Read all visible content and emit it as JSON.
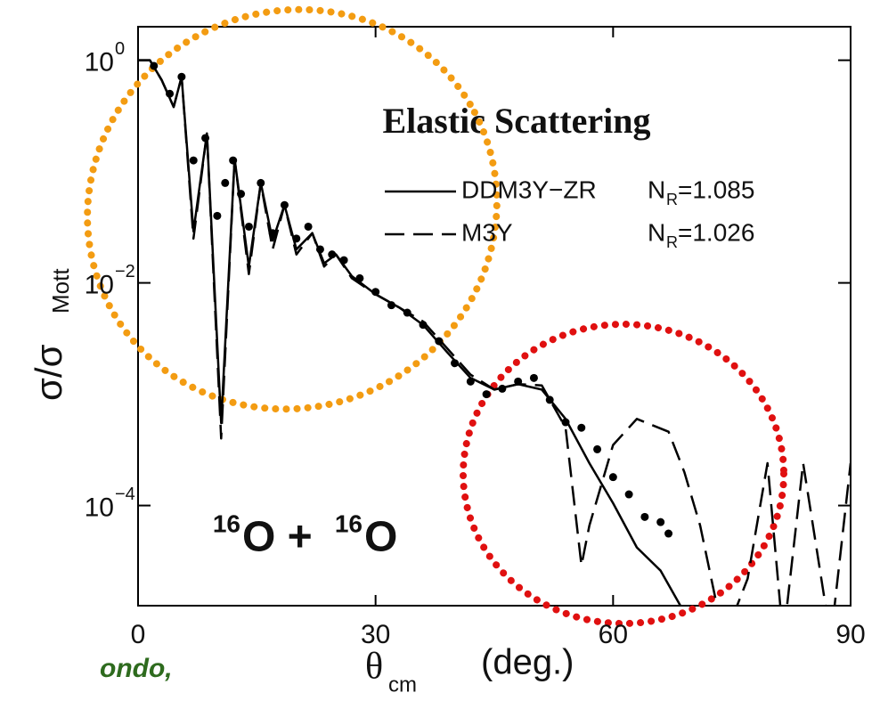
{
  "chart_data": {
    "type": "line",
    "title": "Elastic Scattering",
    "x_label": {
      "main": "θ",
      "sub": "cm",
      "unit": "(deg.)"
    },
    "y_label": {
      "main": "σ/σ",
      "sub": "Mott"
    },
    "annotation": [
      "16",
      "O +",
      "16",
      "O"
    ],
    "footnote": "ondo,",
    "yscale": "log",
    "xlim": [
      0,
      90
    ],
    "xticks": [
      0,
      30,
      60,
      90
    ],
    "ylim": [
      1.26e-05,
      2
    ],
    "yticks": [
      {
        "value": 1,
        "label": "10",
        "superscript": "0"
      },
      {
        "value": 0.01,
        "label": "10",
        "superscript": "−2"
      },
      {
        "value": 0.0001,
        "label": "10",
        "superscript": "−4"
      }
    ],
    "series": [
      {
        "name": "DDM3Y−ZR",
        "norm": {
          "symbol": "N",
          "subscript": "R",
          "text": "=1.085"
        },
        "style": "solid",
        "color": "#000000",
        "x": [
          0,
          1.5,
          3,
          4.5,
          5.5,
          7,
          8.7,
          10.5,
          12.2,
          14,
          15.5,
          17,
          18.5,
          20,
          22,
          23.5,
          25,
          27,
          30,
          33,
          36,
          39,
          42,
          45,
          48,
          51,
          54,
          57,
          60,
          63,
          66,
          68.5
        ],
        "values": [
          1,
          1,
          0.66,
          0.38,
          0.71,
          0.029,
          0.22,
          0.00055,
          0.13,
          0.014,
          0.079,
          0.024,
          0.05,
          0.02,
          0.028,
          0.015,
          0.018,
          0.0115,
          0.0079,
          0.006,
          0.0042,
          0.0024,
          0.0014,
          0.0011,
          0.00123,
          0.0011,
          0.0006,
          0.00024,
          0.000105,
          4.2e-05,
          2.6e-05,
          1.26e-05
        ]
      },
      {
        "name": "M3Y",
        "norm": {
          "symbol": "N",
          "subscript": "R",
          "text": "=1.026"
        },
        "style": "dashed",
        "color": "#000000",
        "x": [
          0,
          1.5,
          3,
          4.5,
          5.5,
          7,
          8.7,
          10.5,
          12.2,
          14,
          15.5,
          17,
          18.5,
          20,
          22,
          23.5,
          25,
          27,
          30,
          33,
          36,
          39,
          42,
          45,
          48,
          51,
          54,
          56,
          57,
          60,
          63,
          67,
          69,
          71,
          74,
          77,
          79.5,
          81.5,
          84,
          87.5,
          90
        ],
        "values": [
          1,
          1,
          0.66,
          0.38,
          0.71,
          0.025,
          0.22,
          0.0004,
          0.13,
          0.012,
          0.079,
          0.02,
          0.05,
          0.018,
          0.028,
          0.014,
          0.018,
          0.011,
          0.0079,
          0.006,
          0.0045,
          0.0026,
          0.0015,
          0.0011,
          0.00123,
          0.0012,
          0.0005,
          2.9e-05,
          6.6e-05,
          0.00035,
          0.0006,
          0.00046,
          0.0002,
          6.6e-05,
          6.3e-06,
          2.2e-05,
          0.00024,
          6.3e-06,
          0.00024,
          6.3e-06,
          0.00024
        ]
      },
      {
        "style": "markers",
        "color": "#000000",
        "x": [
          2,
          4,
          5.5,
          7,
          8.5,
          10,
          11,
          12,
          13,
          14,
          15.5,
          17,
          18.5,
          20,
          21.5,
          23,
          24.5,
          26,
          28,
          30,
          32,
          34,
          36,
          38,
          40,
          42,
          44,
          46,
          48,
          50,
          52,
          54,
          56,
          58,
          60,
          62,
          64,
          66,
          67
        ],
        "values": [
          0.89,
          0.5,
          0.71,
          0.126,
          0.2,
          0.04,
          0.079,
          0.126,
          0.063,
          0.032,
          0.079,
          0.028,
          0.05,
          0.025,
          0.032,
          0.02,
          0.018,
          0.016,
          0.011,
          0.0083,
          0.0063,
          0.0054,
          0.0042,
          0.003,
          0.0019,
          0.0013,
          0.001,
          0.00112,
          0.0013,
          0.0014,
          0.00089,
          0.00056,
          0.0005,
          0.00032,
          0.00018,
          0.000126,
          7.9e-05,
          7.1e-05,
          5.6e-05
        ]
      }
    ]
  }
}
